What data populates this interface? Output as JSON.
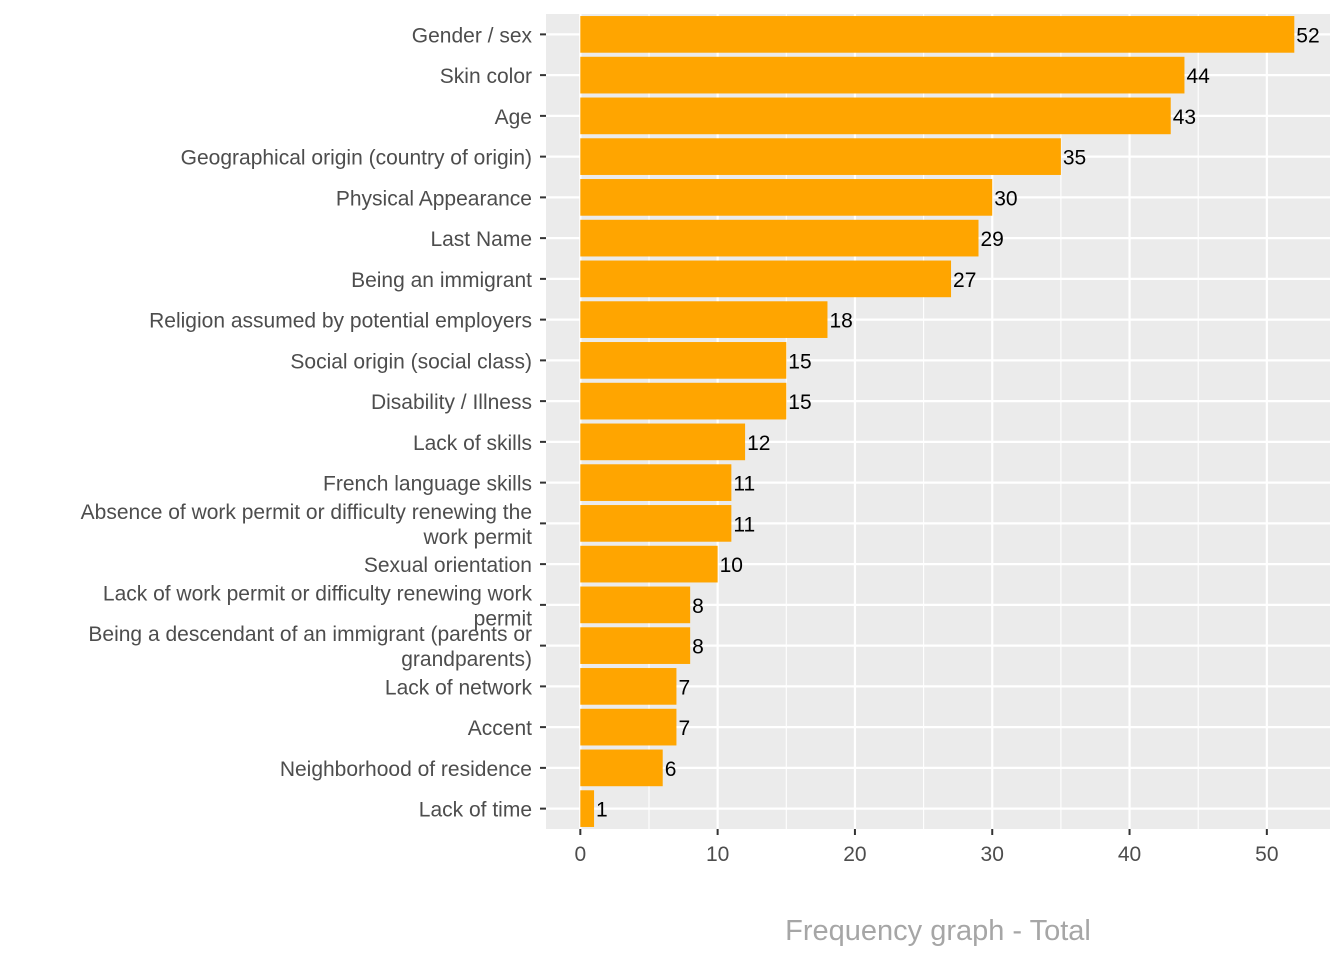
{
  "chart_data": {
    "type": "bar",
    "orientation": "horizontal",
    "title": "Frequency graph - Total",
    "title_position": "bottom",
    "xlabel": "",
    "ylabel": "",
    "categories": [
      "Gender / sex",
      "Skin color",
      "Age",
      "Geographical origin (country of origin)",
      "Physical Appearance",
      "Last Name",
      "Being an immigrant",
      "Religion assumed by potential employers",
      "Social origin (social class)",
      "Disability / Illness",
      "Lack of skills",
      "French language skills",
      "Absence of work permit or difficulty renewing the work permit",
      "Sexual orientation",
      "Lack of work permit or difficulty renewing work permit",
      "Being a descendant of an immigrant (parents or grandparents)",
      "Lack of network",
      "Accent",
      "Neighborhood of residence",
      "Lack of time"
    ],
    "category_lines": [
      [
        "Gender / sex"
      ],
      [
        "Skin color"
      ],
      [
        "Age"
      ],
      [
        "Geographical origin (country of origin)"
      ],
      [
        "Physical Appearance"
      ],
      [
        "Last Name"
      ],
      [
        "Being an immigrant"
      ],
      [
        "Religion assumed by potential employers"
      ],
      [
        "Social origin (social class)"
      ],
      [
        "Disability / Illness"
      ],
      [
        "Lack of skills"
      ],
      [
        "French language skills"
      ],
      [
        "Absence of work permit or difficulty renewing the",
        "work permit"
      ],
      [
        "Sexual orientation"
      ],
      [
        "Lack of work permit or difficulty renewing work",
        "permit"
      ],
      [
        "Being a descendant of an immigrant (parents or",
        "grandparents)"
      ],
      [
        "Lack of network"
      ],
      [
        "Accent"
      ],
      [
        "Neighborhood of residence"
      ],
      [
        "Lack of time"
      ]
    ],
    "values": [
      52,
      44,
      43,
      35,
      30,
      29,
      27,
      18,
      15,
      15,
      12,
      11,
      11,
      10,
      8,
      8,
      7,
      7,
      6,
      1
    ],
    "xlim": [
      -2.5,
      54.6
    ],
    "xticks": [
      0,
      10,
      20,
      30,
      40,
      50
    ],
    "xtick_labels": [
      "0",
      "10",
      "20",
      "30",
      "40",
      "50"
    ],
    "grid": true,
    "legend": "none",
    "colors": {
      "bar": "#FFA500",
      "panel": "#EBEBEB",
      "grid_major": "#FFFFFF",
      "data_label": "#000000",
      "axis_text": "#4D4D4D",
      "title": "#A6A6A6"
    }
  }
}
